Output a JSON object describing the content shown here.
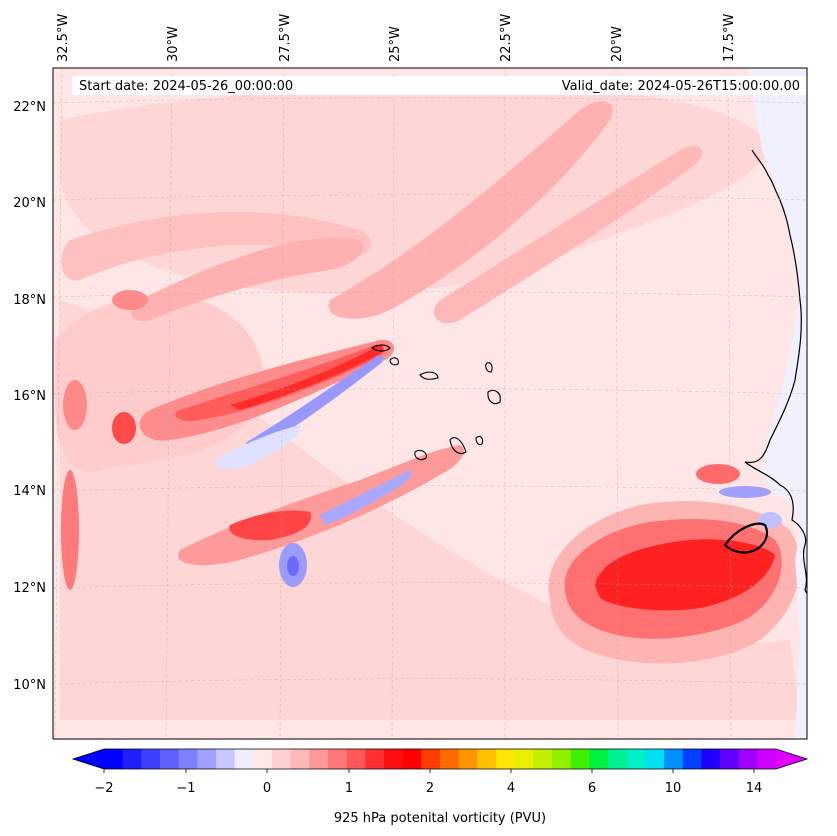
{
  "map": {
    "start_date": "Start date: 2024-05-26_00:00:00",
    "valid_date": "Valid_date: 2024-05-26T15:00:00.00",
    "lon_labels": [
      "32.5°W",
      "30°W",
      "27.5°W",
      "25°W",
      "22.5°W",
      "20°W",
      "17.5°W"
    ],
    "lat_labels": [
      "22°N",
      "20°N",
      "18°N",
      "16°N",
      "14°N",
      "12°N",
      "10°N"
    ],
    "colorbar_title": "925 hPa potenital vorticity (PVU)",
    "colorbar_ticks": [
      "−2",
      "−1",
      "0",
      "1",
      "2",
      "4",
      "6",
      "10",
      "14"
    ],
    "colorbar_colors": [
      "#0000ff",
      "#2020ff",
      "#4040ff",
      "#6060ff",
      "#8080ff",
      "#a0a0ff",
      "#c8c8ff",
      "#eeeeff",
      "#ffe8e8",
      "#ffd0d0",
      "#ffb8b8",
      "#ff9898",
      "#ff7878",
      "#ff5858",
      "#ff3030",
      "#ff1010",
      "#ff0000",
      "#ff3c00",
      "#ff6a00",
      "#ff9600",
      "#ffc000",
      "#ffe600",
      "#e8f000",
      "#c0f000",
      "#90f000",
      "#40f000",
      "#00f040",
      "#00f090",
      "#00f0c8",
      "#00e0f0",
      "#0090ff",
      "#0040ff",
      "#2000ff",
      "#6000ff",
      "#a000ff",
      "#d000ff"
    ],
    "colorbar_under": "#0000ff",
    "colorbar_over": "#e000ff",
    "background_fill": "#ffe6e6",
    "land_fill": "#f0f0ff",
    "coast_color": "#000000"
  }
}
